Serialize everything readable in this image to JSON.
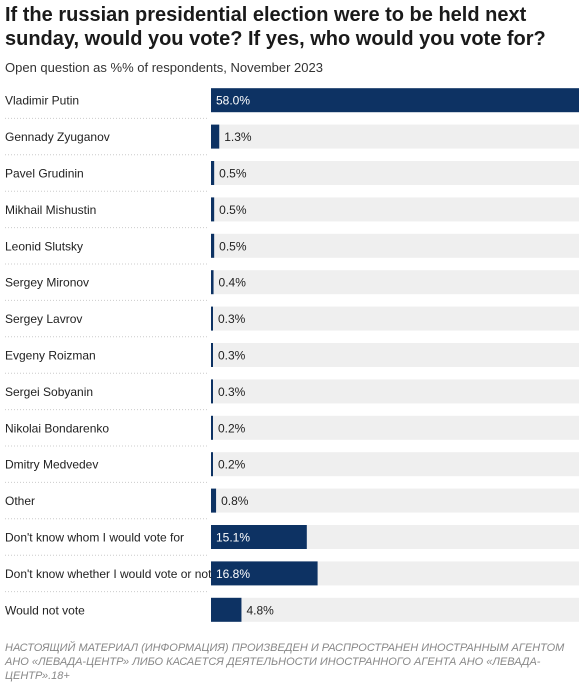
{
  "title": "If the russian presidential election were to be held next sunday, would you vote? If yes, who would you vote for?",
  "subtitle": "Open question as %% of respondents, November 2023",
  "footer": "НАСТОЯЩИЙ МАТЕРИАЛ (ИНФОРМАЦИЯ) ПРОИЗВЕДЕН И РАСПРОСТРАНЕН ИНОСТРАННЫМ АГЕНТОМ АНО «ЛЕВАДА-ЦЕНТР» ЛИБО КАСАЕТСЯ ДЕЯТЕЛЬНОСТИ ИНОСТРАННОГО АГЕНТА АНО «ЛЕВАДА-ЦЕНТР».18+",
  "colors": {
    "bar": "#0d3263",
    "track": "#efefef",
    "separator": "#cccccc"
  },
  "chart_data": {
    "type": "bar",
    "orientation": "horizontal",
    "categories": [
      "Vladimir Putin",
      "Gennady Zyuganov",
      "Pavel Grudinin",
      "Mikhail Mishustin",
      "Leonid Slutsky",
      "Sergey Mironov",
      "Sergey Lavrov",
      "Evgeny Roizman",
      "Sergei Sobyanin",
      "Nikolai Bondarenko",
      "Dmitry Medvedev",
      "Other",
      "Don't know whom I would vote for",
      "Don't know whether I would vote or not",
      "Would not vote"
    ],
    "values": [
      58.0,
      1.3,
      0.5,
      0.5,
      0.5,
      0.4,
      0.3,
      0.3,
      0.3,
      0.2,
      0.2,
      0.8,
      15.1,
      16.8,
      4.8
    ],
    "value_labels": [
      "58.0%",
      "1.3%",
      "0.5%",
      "0.5%",
      "0.5%",
      "0.4%",
      "0.3%",
      "0.3%",
      "0.3%",
      "0.2%",
      "0.2%",
      "0.8%",
      "15.1%",
      "16.8%",
      "4.8%"
    ],
    "xlim": [
      0,
      58.0
    ]
  }
}
